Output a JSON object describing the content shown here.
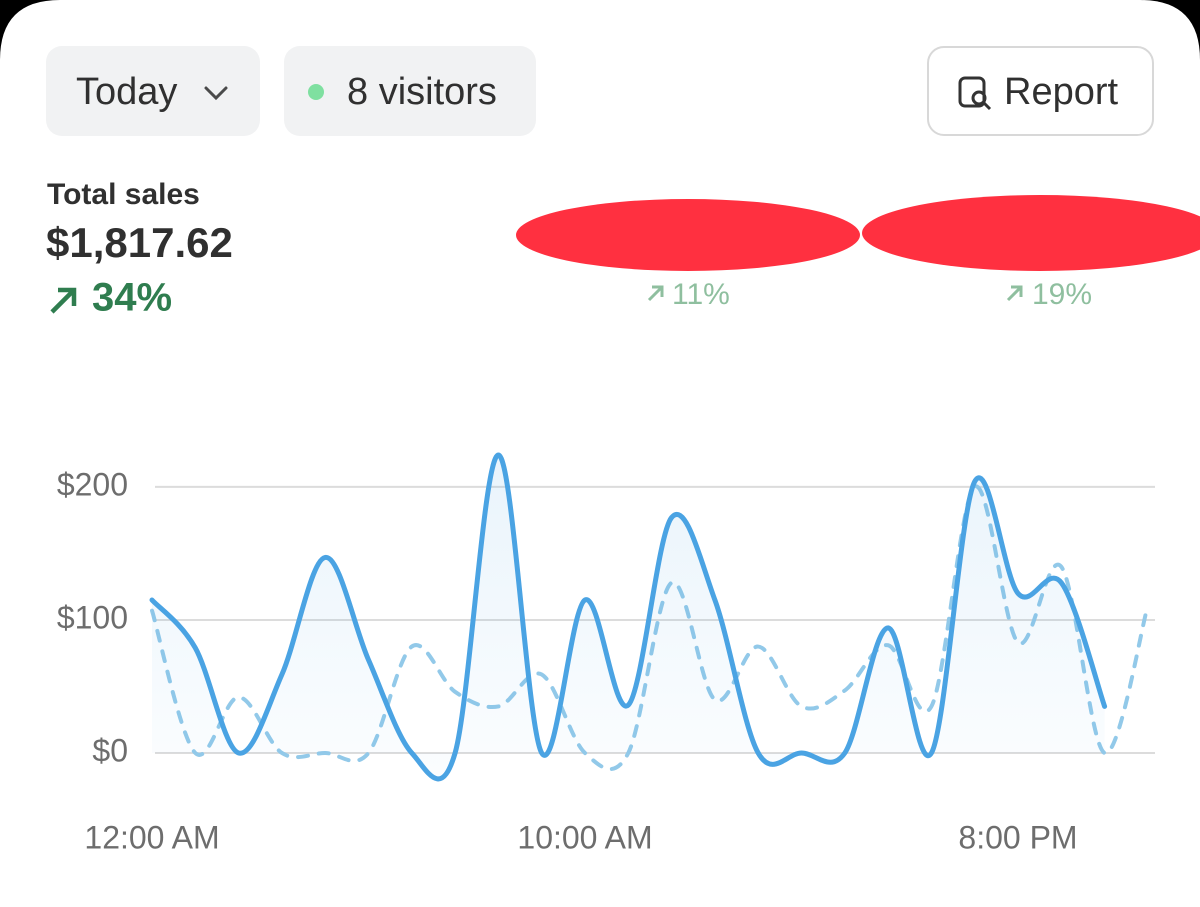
{
  "header": {
    "date_button": "Today",
    "visitors_button": "8 visitors",
    "report_button": "Report"
  },
  "metrics": {
    "total_sales": {
      "label": "Total sales",
      "value": "$1,817.62",
      "change": "34%"
    },
    "orders": {
      "change": "11%"
    },
    "conversion": {
      "change": "19%"
    }
  },
  "chart_data": {
    "type": "line",
    "categories": [
      "12:00 AM",
      null,
      null,
      null,
      null,
      null,
      null,
      null,
      null,
      null,
      "10:00 AM",
      null,
      null,
      null,
      null,
      null,
      null,
      null,
      null,
      null,
      "8:00 PM",
      null,
      null,
      null
    ],
    "series": [
      {
        "color": "#4aa3e3",
        "style": "solid",
        "fill": true,
        "values": [
          115,
          79,
          0,
          59,
          147,
          70,
          0,
          0,
          224,
          0,
          115,
          36,
          177,
          115,
          0,
          0,
          0,
          94,
          0,
          204,
          120,
          128,
          35,
          null
        ]
      },
      {
        "color": "#92c9e9",
        "style": "dashed",
        "fill": false,
        "values": [
          107,
          0,
          42,
          0,
          0,
          0,
          80,
          46,
          35,
          59,
          0,
          0,
          128,
          40,
          80,
          35,
          47,
          81,
          35,
          200,
          83,
          140,
          0,
          111
        ]
      }
    ],
    "ylim": [
      -20,
      230
    ],
    "yticks": [
      {
        "value": 0,
        "label": "$0"
      },
      {
        "value": 100,
        "label": "$100"
      },
      {
        "value": 200,
        "label": "$200"
      }
    ],
    "grid": true
  }
}
